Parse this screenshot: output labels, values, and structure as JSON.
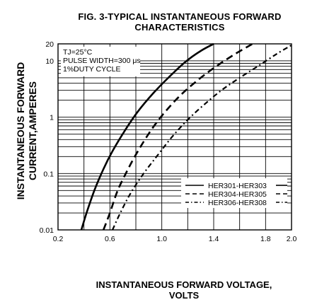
{
  "chart_data": {
    "type": "line",
    "title": "FIG. 3-TYPICAL INSTANTANEOUS FORWARD",
    "subtitle": "CHARACTERISTICS",
    "xlabel_line1": "INSTANTANEOUS FORWARD VOLTAGE,",
    "xlabel_line2": "VOLTS",
    "ylabel_line1": "INSTANTANEOUS FORWARD",
    "ylabel_line2": "CURRENT,AMPERES",
    "x_scale": "linear",
    "y_scale": "log",
    "xlim": [
      0.2,
      2.0
    ],
    "ylim": [
      0.01,
      20
    ],
    "x_ticks": [
      0.2,
      0.6,
      1.0,
      1.4,
      1.8,
      2.0
    ],
    "x_tick_labels": [
      "0.2",
      "0.6",
      "1.0",
      "1.4",
      "1.8",
      "2.0"
    ],
    "y_tick_values": [
      0.01,
      0.1,
      1,
      10,
      20
    ],
    "y_tick_labels": [
      "0.01",
      "0.1",
      "1",
      "10",
      "20"
    ],
    "x_minor_step": 0.2,
    "grid": true,
    "annotation_lines": [
      "TJ=25°C",
      "PULSE WIDTH=300 μs",
      "1%DUTY CYCLE"
    ],
    "legend_position": "bottom-right",
    "series": [
      {
        "name": "HER301-HER303",
        "style": "solid",
        "x": [
          0.38,
          0.42,
          0.48,
          0.55,
          0.62,
          0.72,
          0.82,
          0.93,
          1.05,
          1.18,
          1.3,
          1.4
        ],
        "y": [
          0.01,
          0.02,
          0.05,
          0.12,
          0.25,
          0.6,
          1.3,
          2.6,
          5.0,
          9.5,
          15,
          20
        ]
      },
      {
        "name": "HER304-HER305",
        "style": "dashed",
        "x": [
          0.55,
          0.6,
          0.66,
          0.74,
          0.82,
          0.92,
          1.02,
          1.14,
          1.28,
          1.42,
          1.56,
          1.7
        ],
        "y": [
          0.01,
          0.02,
          0.05,
          0.12,
          0.26,
          0.6,
          1.2,
          2.4,
          4.6,
          8.0,
          13,
          20
        ]
      },
      {
        "name": "HER306-HER308",
        "style": "dash-dot",
        "x": [
          0.62,
          0.68,
          0.76,
          0.86,
          0.96,
          1.08,
          1.2,
          1.33,
          1.46,
          1.6,
          1.74,
          1.88,
          2.0
        ],
        "y": [
          0.01,
          0.02,
          0.045,
          0.1,
          0.2,
          0.45,
          0.9,
          1.7,
          3.0,
          5.0,
          8.0,
          13,
          19
        ]
      }
    ]
  }
}
